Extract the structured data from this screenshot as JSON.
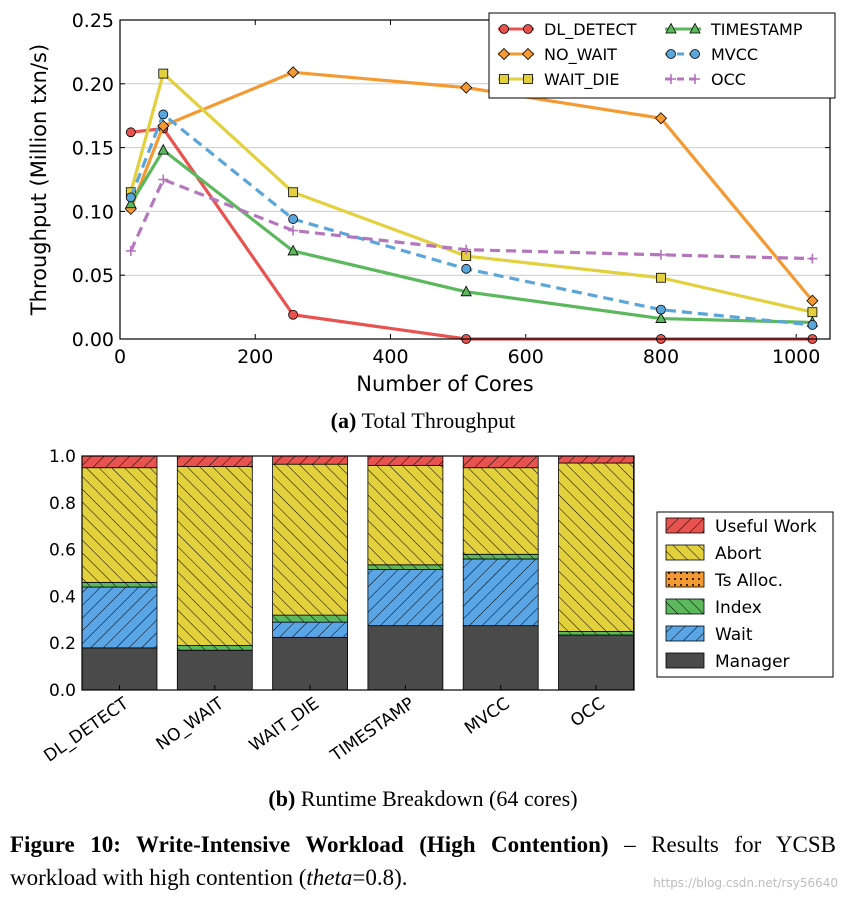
{
  "chart_data": [
    {
      "type": "line",
      "xlabel": "Number of Cores",
      "ylabel": "Throughput (Million txn/s)",
      "xlim": [
        0,
        1050
      ],
      "ylim": [
        0,
        0.25
      ],
      "xticks": [
        0,
        200,
        400,
        600,
        800,
        1000
      ],
      "yticks": [
        "0.00",
        "0.05",
        "0.10",
        "0.15",
        "0.20",
        "0.25"
      ],
      "grid": "horizontal",
      "legend_position": "top-right",
      "x": [
        16,
        64,
        256,
        512,
        800,
        1024
      ],
      "series": [
        {
          "name": "DL_DETECT",
          "color": "#e8534f",
          "marker": "circle",
          "dash": "solid",
          "values": [
            0.162,
            0.165,
            0.019,
            0.0,
            0.0,
            0.0
          ]
        },
        {
          "name": "NO_WAIT",
          "color": "#f59a33",
          "marker": "diamond",
          "dash": "solid",
          "values": [
            0.102,
            0.167,
            0.209,
            0.197,
            0.173,
            0.03
          ]
        },
        {
          "name": "WAIT_DIE",
          "color": "#e3d03d",
          "marker": "square",
          "dash": "solid",
          "values": [
            0.115,
            0.208,
            0.115,
            0.065,
            0.048,
            0.021
          ]
        },
        {
          "name": "TIMESTAMP",
          "color": "#5cb85c",
          "marker": "triangle",
          "dash": "solid",
          "values": [
            0.106,
            0.148,
            0.069,
            0.037,
            0.016,
            0.013
          ]
        },
        {
          "name": "MVCC",
          "color": "#5aa5d9",
          "marker": "circle",
          "dash": "dashed",
          "values": [
            0.111,
            0.176,
            0.094,
            0.055,
            0.023,
            0.011
          ]
        },
        {
          "name": "OCC",
          "color": "#b576bd",
          "marker": "plus",
          "dash": "dashed",
          "values": [
            0.069,
            0.125,
            0.085,
            0.07,
            0.066,
            0.063
          ]
        }
      ]
    },
    {
      "type": "bar",
      "stacked": true,
      "ylim": [
        0,
        1.0
      ],
      "yticks": [
        "0.0",
        "0.2",
        "0.4",
        "0.6",
        "0.8",
        "1.0"
      ],
      "legend_position": "right",
      "categories": [
        "DL_DETECT",
        "NO_WAIT",
        "WAIT_DIE",
        "TIMESTAMP",
        "MVCC",
        "OCC"
      ],
      "series": [
        {
          "name": "Manager",
          "color": "#4a4a4a",
          "hatch": "none",
          "values": [
            0.18,
            0.17,
            0.225,
            0.275,
            0.275,
            0.235
          ]
        },
        {
          "name": "Wait",
          "color": "#5aa5e6",
          "hatch": "slash",
          "values": [
            0.26,
            0.0,
            0.065,
            0.24,
            0.285,
            0.0
          ]
        },
        {
          "name": "Index",
          "color": "#5cb85c",
          "hatch": "backslash",
          "values": [
            0.02,
            0.02,
            0.03,
            0.02,
            0.02,
            0.015
          ]
        },
        {
          "name": "Ts Alloc.",
          "color": "#f59a33",
          "hatch": "dots",
          "values": [
            0.0,
            0.0,
            0.0,
            0.0,
            0.0,
            0.0
          ]
        },
        {
          "name": "Abort",
          "color": "#e3d03d",
          "hatch": "backslash",
          "values": [
            0.49,
            0.765,
            0.645,
            0.425,
            0.37,
            0.72
          ]
        },
        {
          "name": "Useful Work",
          "color": "#e8534f",
          "hatch": "slash",
          "values": [
            0.05,
            0.045,
            0.035,
            0.04,
            0.05,
            0.03
          ]
        }
      ]
    }
  ],
  "captions": {
    "a_label": "(a)",
    "a_text": "Total Throughput",
    "b_label": "(b)",
    "b_text": "Runtime Breakdown (64 cores)"
  },
  "figure_caption": {
    "bold": "Figure 10: Write-Intensive Workload (High Contention)",
    "rest_before": " – Results for YCSB workload with high contention (",
    "italic": "theta",
    "rest_after": "=0.8)."
  },
  "watermark": "https://blog.csdn.net/rsy56640"
}
